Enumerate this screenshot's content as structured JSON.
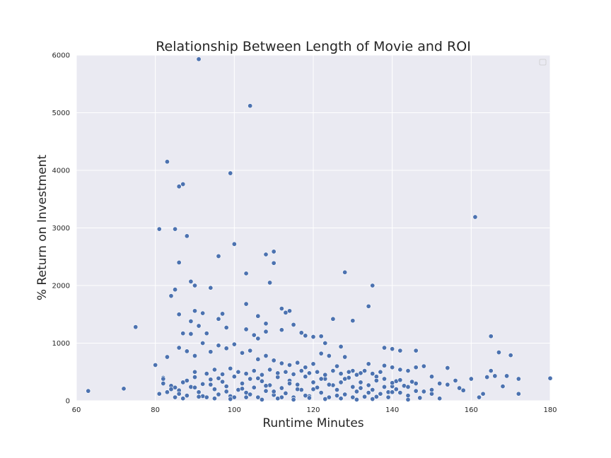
{
  "chart_data": {
    "type": "scatter",
    "title": "Relationship Between Length of Movie and ROI",
    "xlabel": "Runtime Minutes",
    "ylabel": "% Return on Investment",
    "xlim": [
      60,
      180
    ],
    "ylim": [
      0,
      6000
    ],
    "xticks": [
      "60",
      "80",
      "100",
      "120",
      "140",
      "160",
      "180"
    ],
    "yticks": [
      "0",
      "1000",
      "2000",
      "3000",
      "4000",
      "5000",
      "6000"
    ],
    "grid": true,
    "legend": "top-right (empty)",
    "colors": {
      "background": "#eaeaf2",
      "grid": "#ffffff",
      "point": "#4c72b0"
    },
    "series": [
      {
        "points": [
          [
            63,
            170
          ],
          [
            72,
            210
          ],
          [
            75,
            1280
          ],
          [
            81,
            2980
          ],
          [
            83,
            4150
          ],
          [
            84,
            1820
          ],
          [
            85,
            1930
          ],
          [
            85,
            2980
          ],
          [
            86,
            2400
          ],
          [
            86,
            3720
          ],
          [
            87,
            3760
          ],
          [
            88,
            2860
          ],
          [
            89,
            2070
          ],
          [
            90,
            2000
          ],
          [
            91,
            5930
          ],
          [
            94,
            1960
          ],
          [
            96,
            2510
          ],
          [
            97,
            1510
          ],
          [
            99,
            3950
          ],
          [
            100,
            2720
          ],
          [
            103,
            2210
          ],
          [
            103,
            1680
          ],
          [
            104,
            5120
          ],
          [
            106,
            1470
          ],
          [
            108,
            2540
          ],
          [
            109,
            2050
          ],
          [
            110,
            2590
          ],
          [
            110,
            2390
          ],
          [
            86,
            1500
          ],
          [
            87,
            1170
          ],
          [
            89,
            1380
          ],
          [
            89,
            1160
          ],
          [
            90,
            1560
          ],
          [
            91,
            1300
          ],
          [
            92,
            1520
          ],
          [
            93,
            1170
          ],
          [
            96,
            1420
          ],
          [
            98,
            1270
          ],
          [
            103,
            1240
          ],
          [
            105,
            1140
          ],
          [
            106,
            1080
          ],
          [
            108,
            1340
          ],
          [
            108,
            1200
          ],
          [
            112,
            1600
          ],
          [
            112,
            1230
          ],
          [
            113,
            1530
          ],
          [
            114,
            1560
          ],
          [
            115,
            1320
          ],
          [
            117,
            1180
          ],
          [
            118,
            1130
          ],
          [
            120,
            1110
          ],
          [
            122,
            1120
          ],
          [
            123,
            1000
          ],
          [
            125,
            1420
          ],
          [
            127,
            940
          ],
          [
            128,
            2230
          ],
          [
            130,
            1390
          ],
          [
            134,
            1640
          ],
          [
            135,
            2000
          ],
          [
            138,
            920
          ],
          [
            140,
            900
          ],
          [
            142,
            870
          ],
          [
            146,
            870
          ],
          [
            161,
            3190
          ],
          [
            165,
            1120
          ],
          [
            167,
            840
          ],
          [
            170,
            790
          ],
          [
            80,
            620
          ],
          [
            82,
            400
          ],
          [
            83,
            760
          ],
          [
            85,
            230
          ],
          [
            86,
            920
          ],
          [
            88,
            860
          ],
          [
            90,
            780
          ],
          [
            92,
            1000
          ],
          [
            94,
            850
          ],
          [
            96,
            960
          ],
          [
            98,
            910
          ],
          [
            100,
            980
          ],
          [
            102,
            830
          ],
          [
            104,
            870
          ],
          [
            106,
            720
          ],
          [
            108,
            780
          ],
          [
            110,
            700
          ],
          [
            112,
            650
          ],
          [
            114,
            620
          ],
          [
            116,
            660
          ],
          [
            118,
            580
          ],
          [
            120,
            640
          ],
          [
            122,
            820
          ],
          [
            124,
            780
          ],
          [
            126,
            600
          ],
          [
            128,
            760
          ],
          [
            130,
            520
          ],
          [
            132,
            480
          ],
          [
            134,
            640
          ],
          [
            136,
            420
          ],
          [
            138,
            610
          ],
          [
            140,
            580
          ],
          [
            142,
            540
          ],
          [
            144,
            520
          ],
          [
            146,
            580
          ],
          [
            148,
            600
          ],
          [
            150,
            420
          ],
          [
            152,
            300
          ],
          [
            154,
            280
          ],
          [
            156,
            350
          ],
          [
            158,
            180
          ],
          [
            160,
            380
          ],
          [
            162,
            60
          ],
          [
            163,
            120
          ],
          [
            164,
            410
          ],
          [
            165,
            520
          ],
          [
            166,
            430
          ],
          [
            168,
            250
          ],
          [
            169,
            430
          ],
          [
            172,
            380
          ],
          [
            172,
            120
          ],
          [
            180,
            390
          ],
          [
            144,
            20
          ],
          [
            147,
            50
          ],
          [
            150,
            120
          ],
          [
            152,
            40
          ],
          [
            157,
            220
          ],
          [
            148,
            160
          ],
          [
            150,
            190
          ],
          [
            154,
            570
          ],
          [
            146,
            300
          ],
          [
            140,
            250
          ],
          [
            139,
            150
          ],
          [
            141,
            340
          ],
          [
            81,
            120
          ],
          [
            82,
            380
          ],
          [
            83,
            150
          ],
          [
            84,
            260
          ],
          [
            85,
            60
          ],
          [
            86,
            180
          ],
          [
            87,
            320
          ],
          [
            88,
            90
          ],
          [
            89,
            240
          ],
          [
            90,
            410
          ],
          [
            91,
            150
          ],
          [
            92,
            290
          ],
          [
            93,
            60
          ],
          [
            94,
            370
          ],
          [
            95,
            200
          ],
          [
            96,
            110
          ],
          [
            97,
            330
          ],
          [
            98,
            250
          ],
          [
            99,
            80
          ],
          [
            100,
            420
          ],
          [
            101,
            190
          ],
          [
            102,
            300
          ],
          [
            103,
            140
          ],
          [
            104,
            380
          ],
          [
            105,
            230
          ],
          [
            106,
            60
          ],
          [
            107,
            340
          ],
          [
            108,
            170
          ],
          [
            109,
            270
          ],
          [
            110,
            100
          ],
          [
            111,
            410
          ],
          [
            112,
            220
          ],
          [
            113,
            130
          ],
          [
            114,
            350
          ],
          [
            115,
            60
          ],
          [
            116,
            280
          ],
          [
            117,
            190
          ],
          [
            118,
            420
          ],
          [
            119,
            80
          ],
          [
            120,
            320
          ],
          [
            121,
            230
          ],
          [
            122,
            140
          ],
          [
            123,
            380
          ],
          [
            124,
            60
          ],
          [
            125,
            270
          ],
          [
            126,
            190
          ],
          [
            127,
            320
          ],
          [
            128,
            110
          ],
          [
            129,
            400
          ],
          [
            130,
            240
          ],
          [
            131,
            160
          ],
          [
            132,
            320
          ],
          [
            133,
            70
          ],
          [
            134,
            270
          ],
          [
            135,
            190
          ],
          [
            136,
            350
          ],
          [
            137,
            120
          ],
          [
            138,
            240
          ],
          [
            139,
            60
          ],
          [
            140,
            310
          ],
          [
            141,
            200
          ],
          [
            142,
            140
          ],
          [
            143,
            260
          ],
          [
            144,
            90
          ],
          [
            145,
            330
          ],
          [
            146,
            170
          ],
          [
            82,
            300
          ],
          [
            84,
            200
          ],
          [
            86,
            120
          ],
          [
            88,
            350
          ],
          [
            90,
            230
          ],
          [
            92,
            80
          ],
          [
            94,
            280
          ],
          [
            96,
            390
          ],
          [
            98,
            160
          ],
          [
            100,
            60
          ],
          [
            102,
            210
          ],
          [
            104,
            110
          ],
          [
            106,
            390
          ],
          [
            108,
            260
          ],
          [
            110,
            160
          ],
          [
            112,
            60
          ],
          [
            114,
            300
          ],
          [
            116,
            200
          ],
          [
            118,
            90
          ],
          [
            120,
            200
          ],
          [
            122,
            380
          ],
          [
            124,
            280
          ],
          [
            126,
            90
          ],
          [
            128,
            380
          ],
          [
            130,
            60
          ],
          [
            132,
            220
          ],
          [
            134,
            140
          ],
          [
            136,
            70
          ],
          [
            138,
            380
          ],
          [
            140,
            150
          ],
          [
            142,
            360
          ],
          [
            144,
            240
          ],
          [
            87,
            40
          ],
          [
            91,
            70
          ],
          [
            95,
            40
          ],
          [
            99,
            30
          ],
          [
            103,
            60
          ],
          [
            107,
            20
          ],
          [
            111,
            40
          ],
          [
            115,
            20
          ],
          [
            119,
            50
          ],
          [
            123,
            30
          ],
          [
            127,
            40
          ],
          [
            131,
            20
          ],
          [
            135,
            30
          ],
          [
            90,
            500
          ],
          [
            93,
            470
          ],
          [
            95,
            540
          ],
          [
            97,
            460
          ],
          [
            99,
            560
          ],
          [
            101,
            500
          ],
          [
            103,
            470
          ],
          [
            105,
            520
          ],
          [
            107,
            450
          ],
          [
            109,
            540
          ],
          [
            111,
            480
          ],
          [
            113,
            500
          ],
          [
            115,
            460
          ],
          [
            117,
            520
          ],
          [
            119,
            480
          ],
          [
            121,
            500
          ],
          [
            123,
            450
          ],
          [
            125,
            520
          ],
          [
            127,
            470
          ],
          [
            129,
            500
          ],
          [
            131,
            450
          ],
          [
            133,
            520
          ],
          [
            135,
            470
          ],
          [
            137,
            500
          ]
        ]
      }
    ]
  }
}
